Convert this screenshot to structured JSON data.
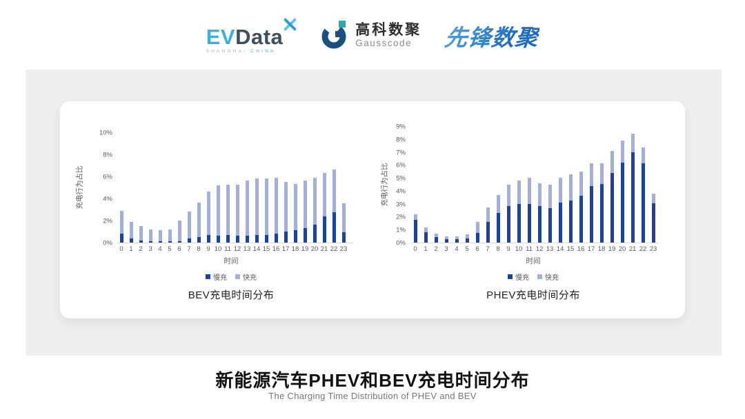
{
  "header": {
    "evdata_logo": {
      "ev": "EV",
      "data": "Data",
      "sub_left": "SHANGHAI",
      "sub_right": "CHINA"
    },
    "gausscode_logo": {
      "cn": "高科数聚",
      "en": "Gausscode"
    },
    "pioneer_logo": {
      "text": "先锋数聚"
    }
  },
  "chart_data": [
    {
      "type": "bar",
      "stacked": true,
      "title": "BEV充电时间分布",
      "xlabel": "时间",
      "ylabel": "充电行为占比",
      "ylim": [
        0,
        10
      ],
      "ytick_step": 2,
      "ytick_suffix": "%",
      "grid": false,
      "legend_position": "bottom",
      "categories": [
        0,
        1,
        2,
        3,
        4,
        5,
        6,
        7,
        8,
        9,
        10,
        11,
        12,
        13,
        14,
        15,
        16,
        17,
        18,
        19,
        20,
        21,
        22,
        23
      ],
      "series": [
        {
          "name": "慢充",
          "color": "#1F419E",
          "values": [
            0.8,
            0.35,
            0.2,
            0.15,
            0.1,
            0.1,
            0.15,
            0.35,
            0.5,
            0.7,
            0.65,
            0.7,
            0.6,
            0.65,
            0.7,
            0.7,
            0.8,
            1.0,
            1.1,
            1.3,
            1.6,
            2.4,
            2.75,
            0.95
          ]
        },
        {
          "name": "快充",
          "color": "#A5AFDB",
          "values": [
            2.1,
            1.55,
            1.3,
            1.05,
            1.0,
            1.1,
            1.85,
            2.45,
            3.1,
            3.9,
            4.55,
            4.55,
            4.65,
            5.0,
            5.1,
            5.1,
            5.05,
            4.5,
            4.2,
            4.3,
            4.3,
            3.9,
            3.85,
            2.6
          ]
        }
      ]
    },
    {
      "type": "bar",
      "stacked": true,
      "title": "PHEV充电时间分布",
      "xlabel": "时间",
      "ylabel": "充电行为占比",
      "ylim": [
        0,
        9
      ],
      "ytick_step": 1,
      "ytick_suffix": "%",
      "grid": false,
      "legend_position": "bottom",
      "categories": [
        0,
        1,
        2,
        3,
        4,
        5,
        6,
        7,
        8,
        9,
        10,
        11,
        12,
        13,
        14,
        15,
        16,
        17,
        18,
        19,
        20,
        21,
        22,
        23
      ],
      "series": [
        {
          "name": "慢充",
          "color": "#1F419E",
          "values": [
            1.75,
            0.8,
            0.45,
            0.25,
            0.25,
            0.3,
            0.75,
            1.6,
            2.3,
            2.8,
            3.0,
            3.0,
            2.8,
            2.65,
            3.1,
            3.25,
            3.6,
            4.35,
            4.55,
            5.4,
            6.2,
            7.0,
            6.15,
            3.05
          ]
        },
        {
          "name": "快充",
          "color": "#A5AFDB",
          "values": [
            0.45,
            0.35,
            0.25,
            0.25,
            0.25,
            0.35,
            0.85,
            1.1,
            1.35,
            1.7,
            1.8,
            2.0,
            1.8,
            1.85,
            1.9,
            2.0,
            1.9,
            1.8,
            1.6,
            1.7,
            1.7,
            1.4,
            1.2,
            0.75
          ]
        }
      ]
    }
  ],
  "footer": {
    "title": "新能源汽车PHEV和BEV充电时间分布",
    "subtitle": "The Charging Time Distribution of PHEV and BEV"
  },
  "colors": {
    "slow_charge": "#1F419E",
    "fast_charge": "#A5AFDB",
    "band_background": "#EFEFEF",
    "card_background": "#FFFFFF",
    "axis_line": "#D9D9D9",
    "tick_text": "#595959"
  }
}
